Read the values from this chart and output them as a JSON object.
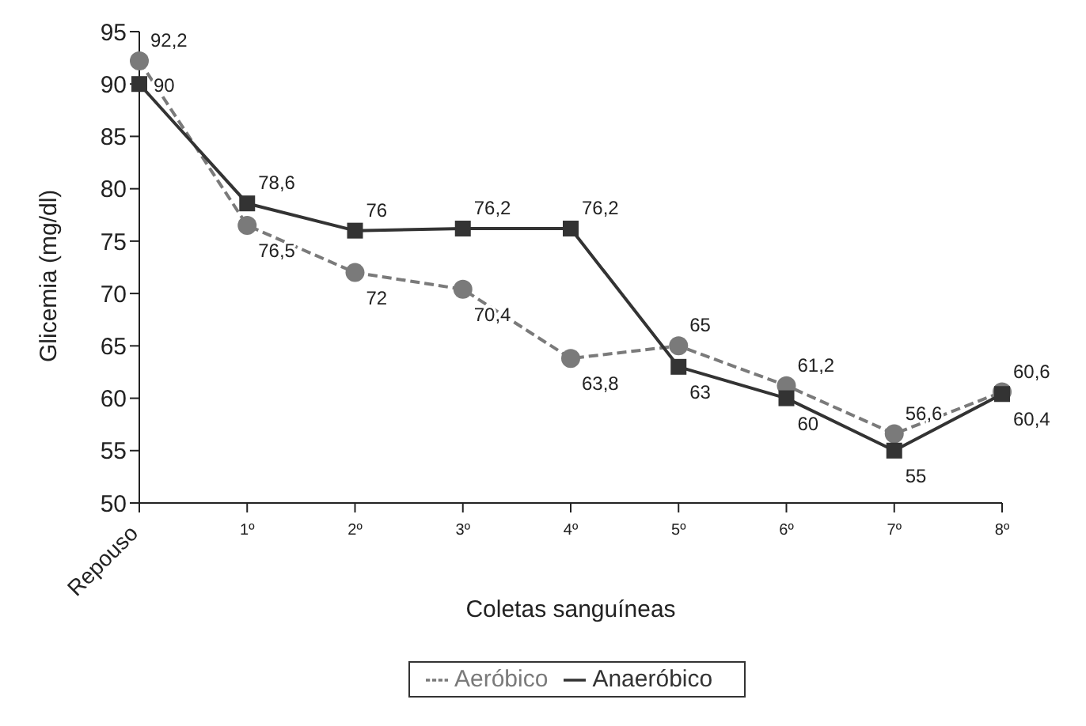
{
  "chart_data": {
    "type": "line",
    "xlabel": "Coletas sanguíneas",
    "ylabel": "Glicemia (mg/dl)",
    "categories": [
      "Repouso",
      "1º",
      "2º",
      "3º",
      "4º",
      "5º",
      "6º",
      "7º",
      "8º"
    ],
    "series": [
      {
        "name": "Aeróbico",
        "color": "#7a7a7a",
        "marker": "circle",
        "line_style": "dashed",
        "values": [
          92.2,
          76.5,
          72,
          70.4,
          63.8,
          65,
          61.2,
          56.6,
          60.6
        ],
        "value_labels": [
          "92,2",
          "76,5",
          "72",
          "70,4",
          "63,8",
          "65",
          "61,2",
          "56,6",
          "60,6"
        ]
      },
      {
        "name": "Anaeróbico",
        "color": "#333333",
        "marker": "square",
        "line_style": "solid",
        "values": [
          90,
          78.6,
          76,
          76.2,
          76.2,
          63,
          60,
          55,
          60.4
        ],
        "value_labels": [
          "90",
          "78,6",
          "76",
          "76,2",
          "76,2",
          "63",
          "60",
          "55",
          "60,4"
        ]
      }
    ],
    "ylim": [
      50,
      95
    ],
    "yticks": [
      50,
      55,
      60,
      65,
      70,
      75,
      80,
      85,
      90,
      95
    ],
    "grid": false,
    "legend": "bottom"
  }
}
